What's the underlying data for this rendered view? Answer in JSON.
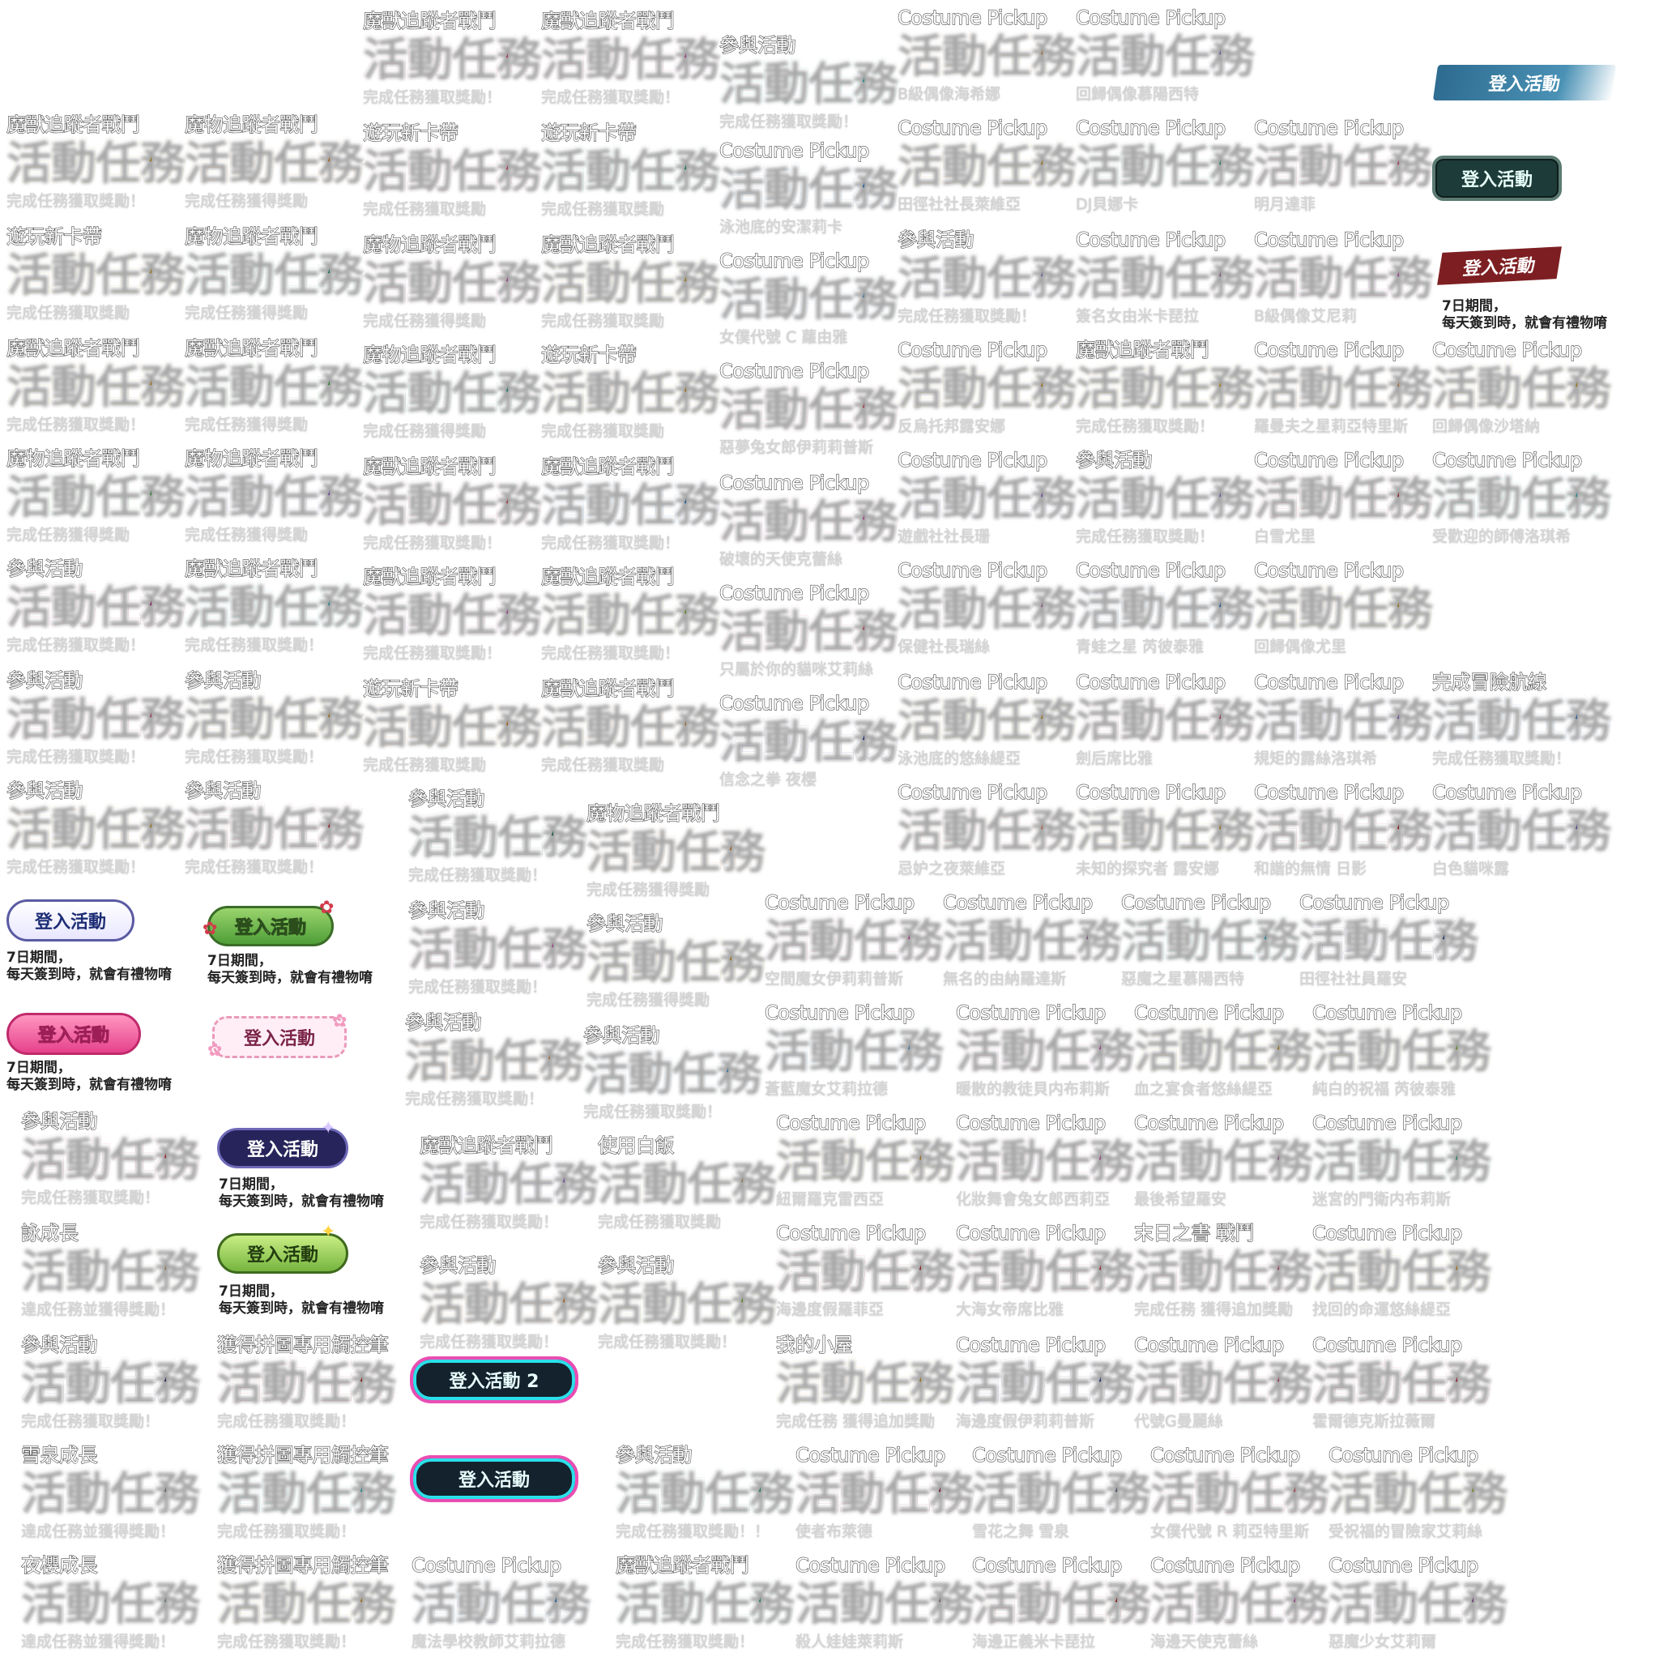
{
  "title_text": "活動任務",
  "palettes": {
    "gold": "#e2a41a",
    "violet": "#9a6ce8",
    "cyan": "#2fc7d8",
    "blue": "#2f84e0",
    "teal": "#1fa892",
    "green": "#4db84e",
    "coral": "#f25770",
    "pink": "#e65dc8",
    "orange": "#f48a27",
    "peach": "#f3a457",
    "lavender": "#a28be7",
    "mint": "#3cbe8a",
    "rose": "#e65689",
    "red": "#e0303e",
    "navy": "#2a3c9c",
    "darkgreen": "#167a58",
    "lime": "#86c630",
    "magenta": "#c72a86",
    "indigo": "#2c2a78",
    "gray": "#8a8a96",
    "maroon": "#a31c3d",
    "crimson": "#c6211f",
    "slate": "#5a6796",
    "yellow": "#efc10e",
    "olive": "#b7c03a",
    "salmon": "#ff8a6a",
    "plum": "#9b4f9e",
    "sand": "#d8b27a",
    "mauve": "#c785b8",
    "sky": "#5fb0f0",
    "sage": "#8fb59a",
    "taupe": "#a78a8a",
    "scarlet": "#e01f47",
    "grape": "#7e64c8"
  },
  "tiles": [
    {
      "sub": "魔獸追蹤者戰鬥",
      "foot": "完成任務獲取獎勵！",
      "pal": "coral"
    },
    {
      "sub": "魔獸追蹤者戰鬥",
      "foot": "完成任務獲取獎勵！",
      "pal": "pink"
    },
    {
      "sub": "參與活動",
      "foot": "完成任務獲取獎勵！",
      "pal": "cyan"
    },
    {
      "sub": "Costume Pickup",
      "foot": "B級偶像海希娜",
      "pal": "peach"
    },
    {
      "sub": "Costume Pickup",
      "foot": "回歸偶像慕陽西特",
      "pal": "lavender"
    },
    {
      "sub": "魔獸追蹤者戰鬥",
      "foot": "完成任務獲取獎勵！",
      "pal": "gold"
    },
    {
      "sub": "魔物追蹤者戰鬥",
      "foot": "完成任務獲得獎勵",
      "pal": "orange"
    },
    {
      "sub": "遊玩新卡帶",
      "foot": "完成任務獲取獎勵",
      "pal": "coral"
    },
    {
      "sub": "遊玩新卡帶",
      "foot": "完成任務獲取獎勵",
      "pal": "teal"
    },
    {
      "sub": "Costume Pickup",
      "foot": "泳池底的安潔莉卡",
      "pal": "blue"
    },
    {
      "sub": "Costume Pickup",
      "foot": "田徑社社長萊維亞",
      "pal": "gold"
    },
    {
      "sub": "Costume Pickup",
      "foot": "DJ貝娜卡",
      "pal": "mint"
    },
    {
      "sub": "Costume Pickup",
      "foot": "明月達菲",
      "pal": "rose"
    },
    {
      "sub": "遊玩新卡帶",
      "foot": "完成任務獲取獎勵",
      "pal": "gold"
    },
    {
      "sub": "魔物追蹤者戰鬥",
      "foot": "完成任務獲得獎勵",
      "pal": "teal"
    },
    {
      "sub": "魔物追蹤者戰鬥",
      "foot": "完成任務獲得獎勵",
      "pal": "pink"
    },
    {
      "sub": "魔獸追蹤者戰鬥",
      "foot": "完成任務獲取獎勵",
      "pal": "gold"
    },
    {
      "sub": "Costume Pickup",
      "foot": "女僕代號 C 蘿由雅",
      "pal": "sky"
    },
    {
      "sub": "參與活動",
      "foot": "完成任務獲取獎勵！",
      "pal": "lavender"
    },
    {
      "sub": "Costume Pickup",
      "foot": "簽名女由米卡琵拉",
      "pal": "mauve"
    },
    {
      "sub": "Costume Pickup",
      "foot": "B級偶像艾尼莉",
      "pal": "pink"
    },
    {
      "sub": "魔獸追蹤者戰鬥",
      "foot": "完成任務獲取獎勵！",
      "pal": "gold"
    },
    {
      "sub": "魔獸追蹤者戰鬥",
      "foot": "完成任務獲得獎勵",
      "pal": "green"
    },
    {
      "sub": "魔物追蹤者戰鬥",
      "foot": "完成任務獲得獎勵",
      "pal": "teal"
    },
    {
      "sub": "遊玩新卡帶",
      "foot": "完成任務獲取獎勵",
      "pal": "gold"
    },
    {
      "sub": "Costume Pickup",
      "foot": "惡夢兔女郎伊莉莉普斯",
      "pal": "coral"
    },
    {
      "sub": "Costume Pickup",
      "foot": "反烏托邦露安娜",
      "pal": "gold"
    },
    {
      "sub": "魔獸追蹤者戰鬥",
      "foot": "完成任務獲取獎勵！",
      "pal": "yellow"
    },
    {
      "sub": "Costume Pickup",
      "foot": "羅曼夫之星莉亞特里斯",
      "pal": "peach"
    },
    {
      "sub": "Costume Pickup",
      "foot": "回歸偶像沙塔納",
      "pal": "gold"
    },
    {
      "sub": "魔物追蹤者戰鬥",
      "foot": "完成任務獲得獎勵",
      "pal": "green"
    },
    {
      "sub": "魔物追蹤者戰鬥",
      "foot": "完成任務獲得獎勵",
      "pal": "violet"
    },
    {
      "sub": "魔獸追蹤者戰鬥",
      "foot": "完成任務獲取獎勵！",
      "pal": "coral"
    },
    {
      "sub": "魔獸追蹤者戰鬥",
      "foot": "完成任務獲取獎勵！",
      "pal": "blue"
    },
    {
      "sub": "Costume Pickup",
      "foot": "破壞的天使克蕾絲",
      "pal": "pink"
    },
    {
      "sub": "Costume Pickup",
      "foot": "遊戲社社長珊",
      "pal": "violet"
    },
    {
      "sub": "參與活動",
      "foot": "完成任務獲取獎勵！",
      "pal": "lavender"
    },
    {
      "sub": "Costume Pickup",
      "foot": "白雪尤里",
      "pal": "red"
    },
    {
      "sub": "Costume Pickup",
      "foot": "受歡迎的師傅洛琪希",
      "pal": "cyan"
    },
    {
      "sub": "參與活動",
      "foot": "完成任務獲取獎勵！",
      "pal": "magenta"
    },
    {
      "sub": "魔獸追蹤者戰鬥",
      "foot": "完成任務獲取獎勵！",
      "pal": "cyan"
    },
    {
      "sub": "魔獸追蹤者戰鬥",
      "foot": "完成任務獲取獎勵！",
      "pal": "pink"
    },
    {
      "sub": "魔獸追蹤者戰鬥",
      "foot": "完成任務獲取獎勵！",
      "pal": "lime"
    },
    {
      "sub": "Costume Pickup",
      "foot": "只屬於你的貓咪艾莉絲",
      "pal": "coral"
    },
    {
      "sub": "Costume Pickup",
      "foot": "保健社長瑞絲",
      "pal": "mauve"
    },
    {
      "sub": "Costume Pickup",
      "foot": "青蛙之星 芮彼泰雅",
      "pal": "blue"
    },
    {
      "sub": "Costume Pickup",
      "foot": "回歸偶像尤里",
      "pal": "gold"
    },
    {
      "sub": "參與活動",
      "foot": "完成任務獲取獎勵！",
      "pal": "rose"
    },
    {
      "sub": "參與活動",
      "foot": "完成任務獲取獎勵！",
      "pal": "gold"
    },
    {
      "sub": "遊玩新卡帶",
      "foot": "完成任務獲取獎勵",
      "pal": "orange"
    },
    {
      "sub": "魔獸追蹤者戰鬥",
      "foot": "完成任務獲取獎勵",
      "pal": "peach"
    },
    {
      "sub": "Costume Pickup",
      "foot": "信念之拳 夜櫻",
      "pal": "navy"
    },
    {
      "sub": "Costume Pickup",
      "foot": "泳池底的悠絲緹亞",
      "pal": "gold"
    },
    {
      "sub": "Costume Pickup",
      "foot": "劍后席比雅",
      "pal": "rose"
    },
    {
      "sub": "Costume Pickup",
      "foot": "規矩的露絲洛琪希",
      "pal": "violet"
    },
    {
      "sub": "完成冒險航線",
      "foot": "完成任務獲取獎勵！",
      "pal": "blue"
    },
    {
      "sub": "參與活動",
      "foot": "完成任務獲取獎勵！",
      "pal": "gold"
    },
    {
      "sub": "參與活動",
      "foot": "完成任務獲取獎勵！",
      "pal": "red"
    },
    {
      "sub": "參與活動",
      "foot": "完成任務獲取獎勵！",
      "pal": "darkgreen"
    },
    {
      "sub": "魔物追蹤者戰鬥",
      "foot": "完成任務獲得獎勵",
      "pal": "orange"
    },
    {
      "sub": "Costume Pickup",
      "foot": "忌妒之夜萊維亞",
      "pal": "salmon"
    },
    {
      "sub": "Costume Pickup",
      "foot": "未知的探究者 露安娜",
      "pal": "gold"
    },
    {
      "sub": "Costume Pickup",
      "foot": "和諧的無情 日影",
      "pal": "crimson"
    },
    {
      "sub": "Costume Pickup",
      "foot": "白色貓咪露",
      "pal": "grape"
    },
    {
      "sub": "參與活動",
      "foot": "完成任務獲取獎勵！",
      "pal": "pink"
    },
    {
      "sub": "參與活動",
      "foot": "完成任務獲得獎勵",
      "pal": "gold"
    },
    {
      "sub": "Costume Pickup",
      "foot": "空間魔女伊莉莉普斯",
      "pal": "pink"
    },
    {
      "sub": "Costume Pickup",
      "foot": "無名的由納羅達斯",
      "pal": "mauve"
    },
    {
      "sub": "Costume Pickup",
      "foot": "惡魔之星慕陽西特",
      "pal": "cyan"
    },
    {
      "sub": "Costume Pickup",
      "foot": "田徑社社員羅安",
      "pal": "navy"
    },
    {
      "sub": "參與活動",
      "foot": "完成任務獲取獎勵！",
      "pal": "peach"
    },
    {
      "sub": "參與活動",
      "foot": "完成任務獲取獎勵！",
      "pal": "sky"
    },
    {
      "sub": "Costume Pickup",
      "foot": "蒼藍魔女艾莉拉德",
      "pal": "sky"
    },
    {
      "sub": "Costume Pickup",
      "foot": "暖散的教徒貝内布莉斯",
      "pal": "pink"
    },
    {
      "sub": "Costume Pickup",
      "foot": "血之宴食者悠絲緹亞",
      "pal": "gold"
    },
    {
      "sub": "Costume Pickup",
      "foot": "純白的祝福 芮彼泰雅",
      "pal": "lime"
    },
    {
      "sub": "參與活動",
      "foot": "完成任務獲取獎勵！",
      "pal": "red"
    },
    {
      "sub": "魔獸追蹤者戰鬥",
      "foot": "完成任務獲取獎勵！",
      "pal": "violet"
    },
    {
      "sub": "使用白飯",
      "foot": "完成任務獲取獎勵",
      "pal": "sand"
    },
    {
      "sub": "Costume Pickup",
      "foot": "紐爾羅克雷西亞",
      "pal": "gold"
    },
    {
      "sub": "Costume Pickup",
      "foot": "化妝舞會兔女郎西莉亞",
      "pal": "pink"
    },
    {
      "sub": "Costume Pickup",
      "foot": "最後希望羅安",
      "pal": "mauve"
    },
    {
      "sub": "Costume Pickup",
      "foot": "迷宮的門衛内布莉斯",
      "pal": "mint"
    },
    {
      "sub": "詠成長",
      "foot": "達成任務並獲得獎勵！",
      "pal": "sand"
    },
    {
      "sub": "參與活動",
      "foot": "完成任務獲取獎勵！",
      "pal": "orange"
    },
    {
      "sub": "參與活動",
      "foot": "完成任務獲取獎勵！",
      "pal": "lime"
    },
    {
      "sub": "Costume Pickup",
      "foot": "海邊度假羅菲亞",
      "pal": "crimson"
    },
    {
      "sub": "Costume Pickup",
      "foot": "大海女帝席比雅",
      "pal": "red"
    },
    {
      "sub": "末日之書 戰鬥",
      "foot": "完成任務 獲得追加獎勵",
      "pal": "rose"
    },
    {
      "sub": "Costume Pickup",
      "foot": "找回的命運悠絲緹亞",
      "pal": "gold"
    },
    {
      "sub": "參與活動",
      "foot": "完成任務獲取獎勵！",
      "pal": "indigo"
    },
    {
      "sub": "獲得拼圖專用觸控筆",
      "foot": "完成任務獲取獎勵！",
      "pal": "crimson"
    },
    {
      "sub": "我的小屋",
      "foot": "完成任務 獲得追加獎勵",
      "pal": "gold"
    },
    {
      "sub": "Costume Pickup",
      "foot": "海邊度假伊莉莉普斯",
      "pal": "navy"
    },
    {
      "sub": "Costume Pickup",
      "foot": "代號G曼麗絲",
      "pal": "rose"
    },
    {
      "sub": "Costume Pickup",
      "foot": "霍爾德克斯拉薇爾",
      "pal": "scarlet"
    },
    {
      "sub": "雪泉成長",
      "foot": "達成任務並獲得獎勵！",
      "pal": "gray"
    },
    {
      "sub": "獲得拼圖專用觸控筆",
      "foot": "完成任務獲取獎勵！",
      "pal": "cyan"
    },
    {
      "sub": "參與活動",
      "foot": "完成任務獲取獎勵！！",
      "pal": "teal"
    },
    {
      "sub": "Costume Pickup",
      "foot": "使者布萊德",
      "pal": "maroon"
    },
    {
      "sub": "Costume Pickup",
      "foot": "雪花之舞 雪泉",
      "pal": "slate"
    },
    {
      "sub": "Costume Pickup",
      "foot": "女僕代號 R 莉亞特里斯",
      "pal": "coral"
    },
    {
      "sub": "Costume Pickup",
      "foot": "受祝福的冒險家艾莉絲",
      "pal": "olive"
    },
    {
      "sub": "夜櫻成長",
      "foot": "達成任務並獲得獎勵！",
      "pal": "sage"
    },
    {
      "sub": "獲得拼圖專用觸控筆",
      "foot": "完成任務獲取獎勵！",
      "pal": "gold"
    },
    {
      "sub": "Costume Pickup",
      "foot": "魔法學校教師艾莉拉德",
      "pal": "blue"
    },
    {
      "sub": "魔獸追蹤者戰鬥",
      "foot": "完成任務獲取獎勵！",
      "pal": "mint"
    },
    {
      "sub": "Costume Pickup",
      "foot": "殺人娃娃萊莉斯",
      "pal": "taupe"
    },
    {
      "sub": "Costume Pickup",
      "foot": "海邊正義米卡琵拉",
      "pal": "crimson"
    },
    {
      "sub": "Costume Pickup",
      "foot": "海邊天使克蕾絲",
      "pal": "pink"
    },
    {
      "sub": "Costume Pickup",
      "foot": "惡魔少女艾莉爾",
      "pal": "plum"
    }
  ],
  "login": {
    "label": "登入活動",
    "label2": "登入活動 2",
    "period_line1": "7日期間，",
    "period_line2": "每天簽到時，就會有禮物唷"
  }
}
